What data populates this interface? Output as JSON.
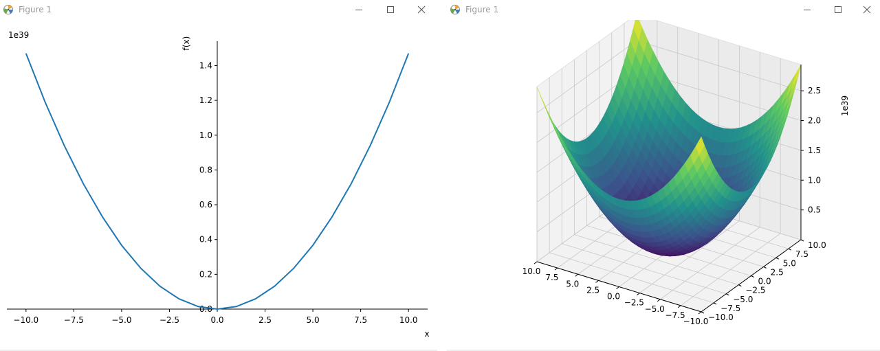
{
  "windows": [
    {
      "title": "Figure 1",
      "app_icon": "matplotlib-icon",
      "controls": [
        "minimize-icon",
        "maximize-icon",
        "close-icon"
      ]
    },
    {
      "title": "Figure 1",
      "app_icon": "matplotlib-icon",
      "controls": [
        "minimize-icon",
        "maximize-icon",
        "close-icon"
      ]
    }
  ],
  "chart_data": [
    {
      "type": "line",
      "title": "",
      "xlabel": "x",
      "ylabel": "f(x)",
      "offset_text": "1e39",
      "xlim": [
        -11,
        11
      ],
      "ylim": [
        0,
        1.54
      ],
      "xticks": [
        -10,
        -7.5,
        -5,
        -2.5,
        0,
        2.5,
        5,
        7.5,
        10
      ],
      "xtick_labels": [
        "−10.0",
        "−7.5",
        "−5.0",
        "−2.5",
        "0.0",
        "2.5",
        "5.0",
        "7.5",
        "10.0"
      ],
      "yticks": [
        0,
        0.2,
        0.4,
        0.6,
        0.8,
        1.0,
        1.2,
        1.4
      ],
      "ytick_labels": [
        "0.0",
        "0.2",
        "0.4",
        "0.6",
        "0.8",
        "1.0",
        "1.2",
        "1.4"
      ],
      "spines": "centered",
      "grid": false,
      "color": "#1f77b4",
      "series": [
        {
          "x": [
            -10,
            -9,
            -8,
            -7,
            -6,
            -5,
            -4,
            -3,
            -2,
            -1,
            0,
            1,
            2,
            3,
            4,
            5,
            6,
            7,
            8,
            9,
            10
          ],
          "y": [
            1.47,
            1.19,
            0.94,
            0.72,
            0.53,
            0.367,
            0.235,
            0.132,
            0.059,
            0.0147,
            0,
            0.0147,
            0.059,
            0.132,
            0.235,
            0.367,
            0.53,
            0.72,
            0.94,
            1.19,
            1.47
          ]
        }
      ]
    },
    {
      "type": "surface",
      "title": "",
      "offset_text": "1e39",
      "colormap": "viridis",
      "colormap_stops": [
        "#440154",
        "#3b528b",
        "#21918c",
        "#5ec962",
        "#fde725"
      ],
      "xlim": [
        -10,
        10
      ],
      "ylim": [
        -10,
        10
      ],
      "zlim": [
        0,
        2.94
      ],
      "xtick_labels": [
        "−10.0",
        "−7.5",
        "−5.0",
        "−2.5",
        "0.0",
        "2.5",
        "5.0",
        "7.5",
        "10.0"
      ],
      "ytick_labels": [
        "−10.0",
        "−7.5",
        "−5.0",
        "−2.5",
        "0.0",
        "2.5",
        "5.0",
        "7.5",
        "10.0"
      ],
      "ztick_labels": [
        "0.5",
        "1.0",
        "1.5",
        "2.0",
        "2.5"
      ],
      "z_at_corners": 2.94,
      "z_at_center": 0,
      "grid": true
    }
  ]
}
